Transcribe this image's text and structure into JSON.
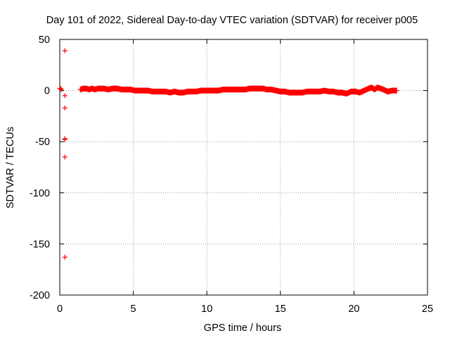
{
  "chart_data": {
    "type": "scatter",
    "title": "Day 101 of 2022, Sidereal Day-to-day VTEC variation (SDTVAR) for receiver p005",
    "xlabel": "GPS time / hours",
    "ylabel": "SDTVAR / TECUs",
    "xlim": [
      0,
      25
    ],
    "ylim": [
      -200,
      50
    ],
    "xticks": [
      0,
      5,
      10,
      15,
      20,
      25
    ],
    "yticks": [
      -200,
      -150,
      -100,
      -50,
      0,
      50
    ],
    "xtick_labels": [
      "0",
      "5",
      "10",
      "15",
      "20",
      "25"
    ],
    "ytick_labels": [
      "-200",
      "-150",
      "-100",
      "-50",
      "0",
      "50"
    ],
    "grid": true,
    "marker": "+",
    "series": [
      {
        "name": "SDTVAR",
        "color": "#ff0000",
        "x": [
          0.0,
          0.05,
          0.1,
          0.35,
          0.35,
          0.35,
          0.35,
          0.35,
          0.35,
          0.35,
          1.4,
          1.6,
          1.8,
          2.0,
          2.2,
          2.4,
          2.6,
          2.8,
          3.0,
          3.3,
          3.6,
          3.9,
          4.2,
          4.5,
          4.8,
          5.1,
          5.4,
          5.7,
          6.0,
          6.3,
          6.6,
          6.9,
          7.2,
          7.5,
          7.8,
          8.1,
          8.4,
          8.7,
          9.0,
          9.3,
          9.6,
          9.9,
          10.2,
          10.5,
          10.8,
          11.1,
          11.4,
          11.7,
          12.0,
          12.3,
          12.6,
          12.9,
          13.2,
          13.5,
          13.8,
          14.1,
          14.4,
          14.7,
          15.0,
          15.3,
          15.6,
          15.9,
          16.2,
          16.5,
          16.8,
          17.1,
          17.4,
          17.7,
          18.0,
          18.3,
          18.6,
          18.9,
          19.2,
          19.5,
          19.8,
          20.1,
          20.4,
          20.7,
          21.0,
          21.2,
          21.4,
          21.6,
          21.8,
          22.0,
          22.3,
          22.6,
          22.9
        ],
        "y": [
          2,
          2,
          1,
          39,
          -5,
          -17,
          -47,
          -48,
          -65,
          -163,
          1,
          2,
          2,
          1,
          2,
          1,
          2,
          2,
          2,
          1,
          2,
          2,
          1,
          1,
          1,
          0,
          0,
          0,
          0,
          -1,
          -1,
          -1,
          -1,
          -2,
          -1,
          -2,
          -2,
          -1,
          -1,
          -1,
          0,
          0,
          0,
          0,
          0,
          1,
          1,
          1,
          1,
          1,
          1,
          2,
          2,
          2,
          2,
          1,
          1,
          0,
          -1,
          -1,
          -2,
          -2,
          -2,
          -2,
          -1,
          -1,
          -1,
          -1,
          0,
          -1,
          -1,
          -2,
          -2,
          -3,
          -1,
          -1,
          -2,
          0,
          2,
          3,
          1,
          3,
          2,
          1,
          -1,
          0,
          0
        ]
      }
    ]
  }
}
